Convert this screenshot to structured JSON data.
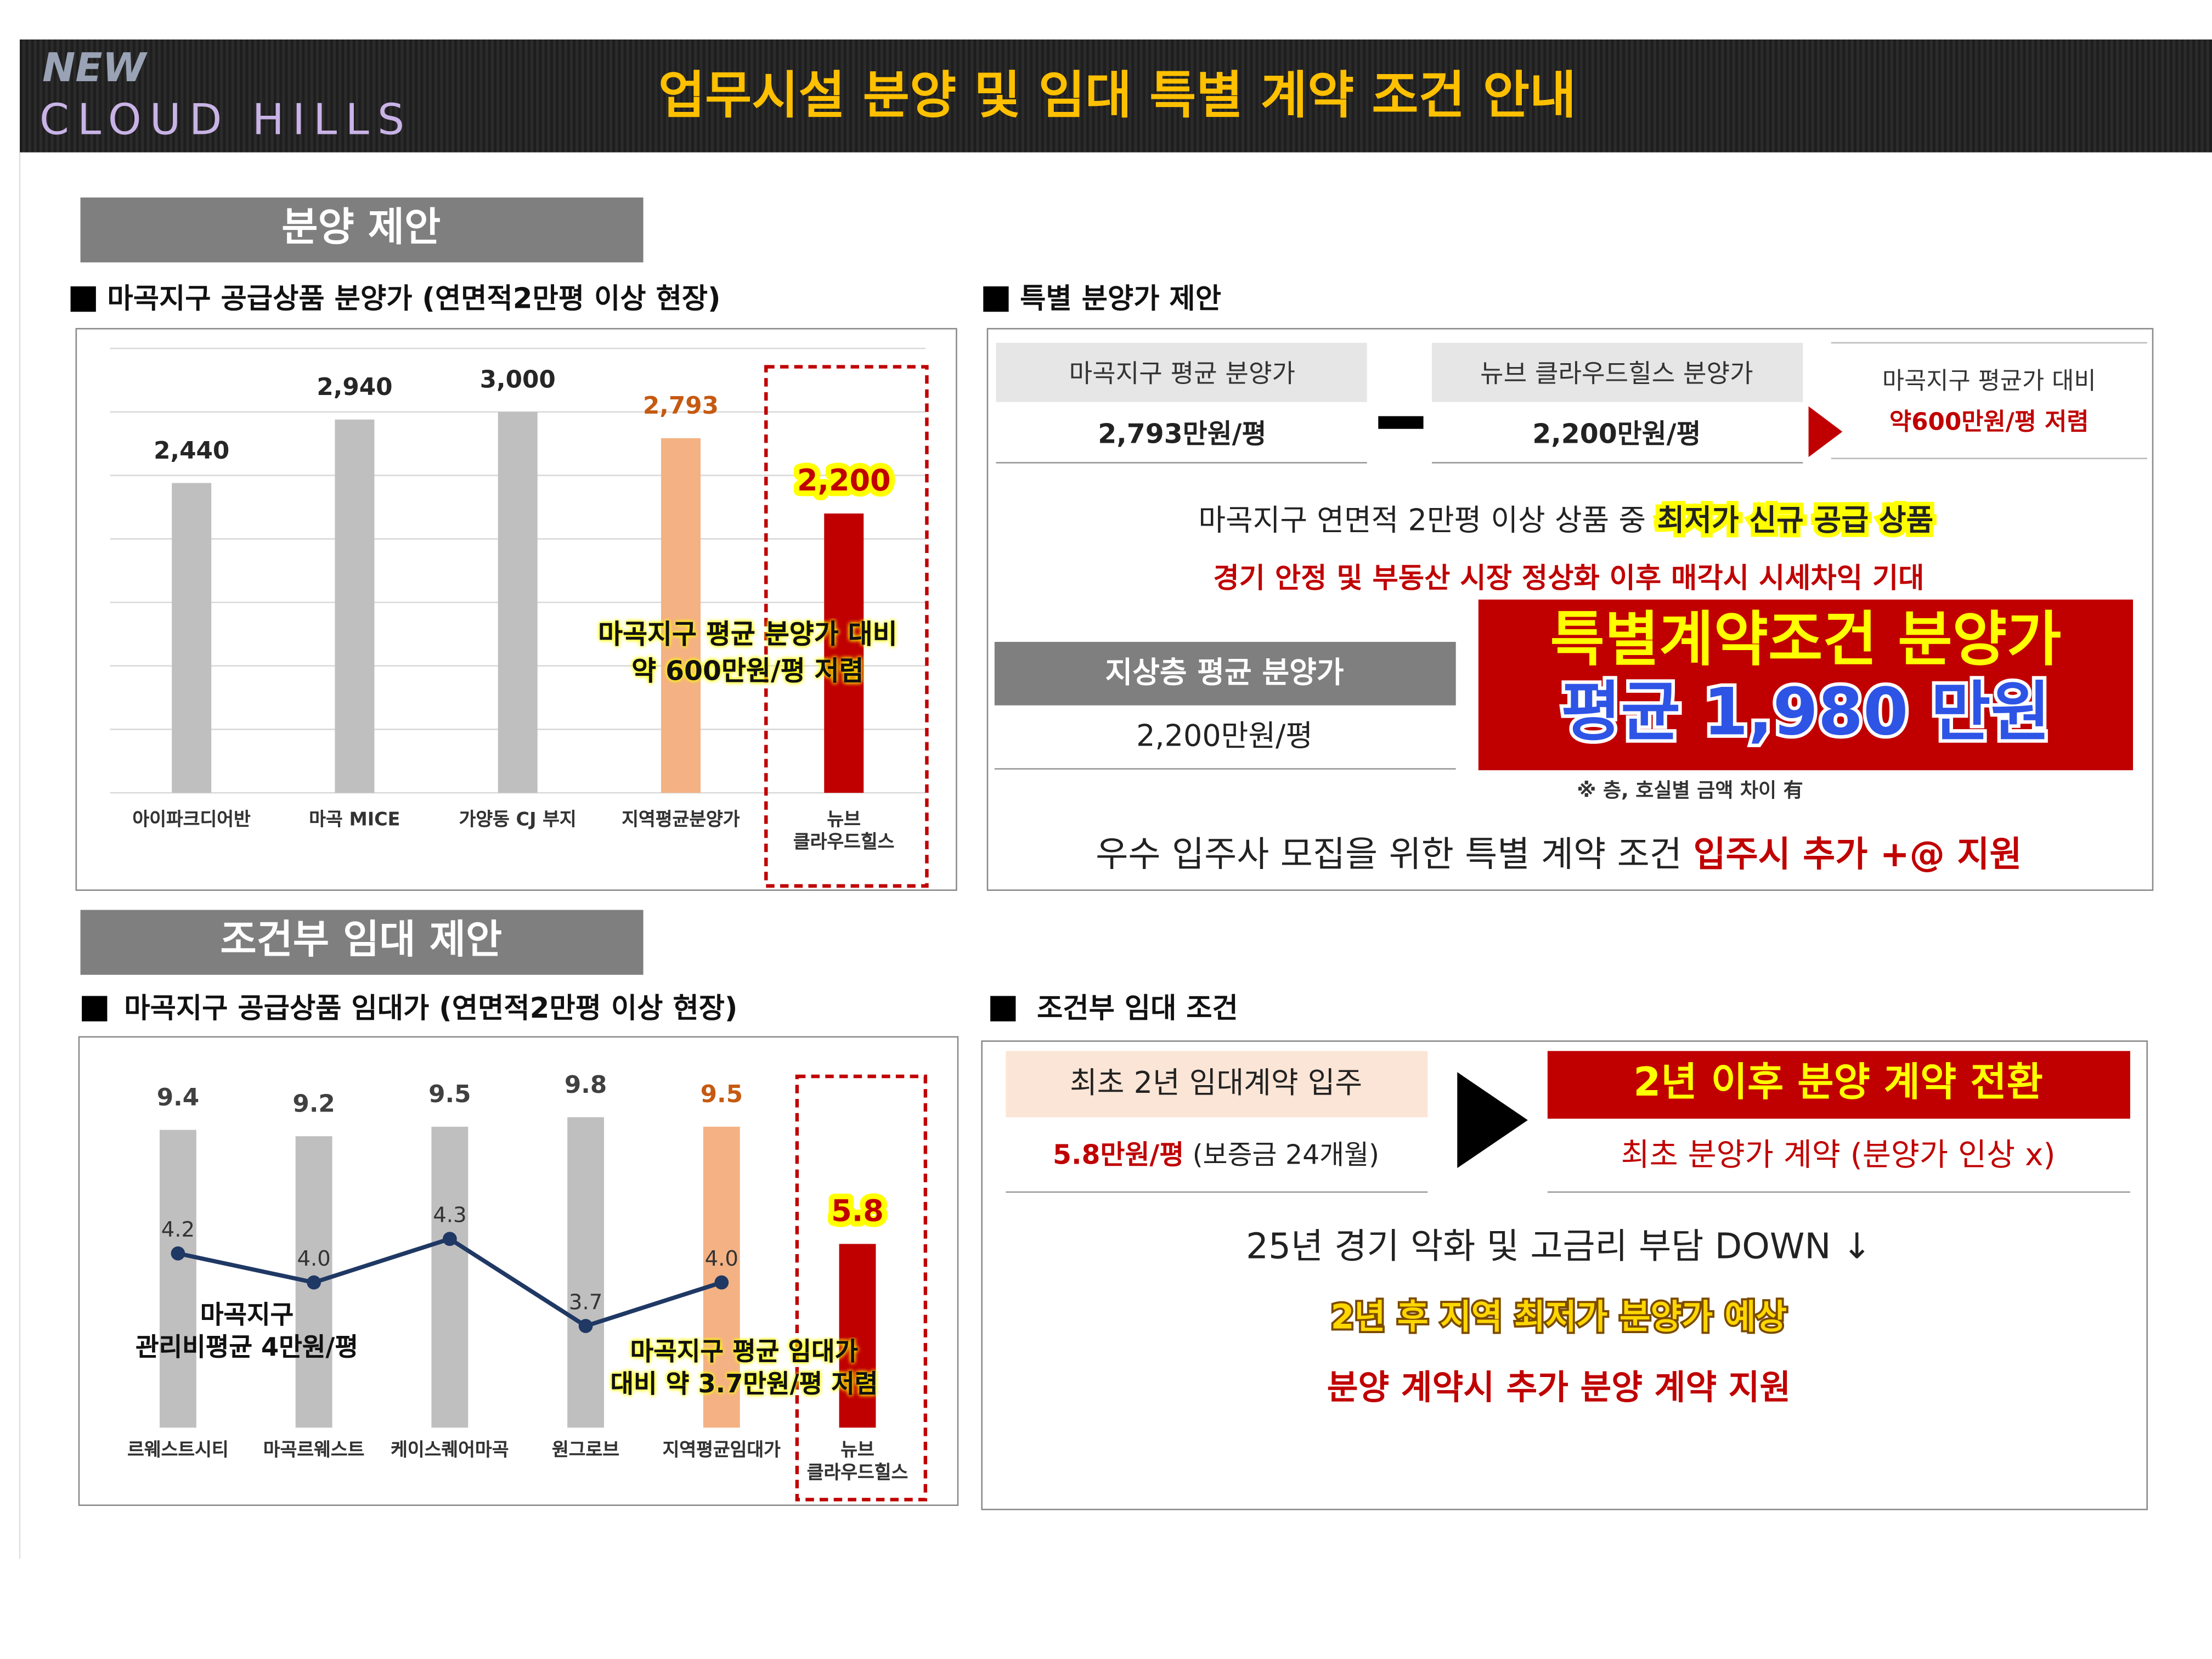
{
  "header": {
    "logo_top": "NEW",
    "logo_bottom": "CLOUD HILLS",
    "title": "업무시설 분양 및 임대 특별 계약 조건 안내"
  },
  "sale": {
    "heading": "분양 제안",
    "chart_caption": "마곡지구 공급상품 분양가 (연면적2만평 이상 현장)",
    "special_caption": "특별 분양가 제안",
    "avg_label": "마곡지구 평균 분양가",
    "avg_value": "2,793만원/평",
    "new_label": "뉴브 클라우드힐스 분양가",
    "new_value": "2,200만원/평",
    "diff_label": "마곡지구 평균가 대비",
    "diff_value": "약600만원/평 저렴",
    "line1": "마곡지구 연면적 2만평 이상 상품 중",
    "line1_highlight": "최저가 신규 공급 상품",
    "line2": "경기 안정 및 부동산 시장 정상화 이후 매각시 시세차익 기대",
    "ground_label": "지상층 평균 분양가",
    "ground_value": "2,200만원/평",
    "special_title": "특별계약조건 분양가",
    "special_price": "평균 1,980 만원",
    "note": "※ 층, 호실별 금액 차이 有",
    "line3": "우수 입주사 모집을 위한 특별 계약 조건",
    "line3_highlight": "입주시 추가 +@ 지원"
  },
  "lease": {
    "heading": "조건부 임대 제안",
    "chart_caption": "마곡지구 공급상품 임대가 (연면적2만평 이상 현장)",
    "cond_caption": "조건부 임대 조건",
    "first_label": "최초 2년 임대계약 입주",
    "first_price": "5.8만원/평",
    "first_note": "(보증금 24개월)",
    "after_label": "2년 이후 분양 계약 전환",
    "after_note": "최초 분양가 계약 (분양가 인상 x)",
    "line1": "25년 경기 악화 및 고금리 부담 DOWN ↓",
    "line2": "2년 후 지역 최저가 분양가 예상",
    "line3": "분양 계약시 추가 분양 계약 지원"
  },
  "chart_data": [
    {
      "type": "bar",
      "categories": [
        "아이파크디어반",
        "마곡 MICE",
        "가양동 CJ 부지",
        "지역평균분양가",
        "뉴브\n클라우드힐스"
      ],
      "values": [
        2440,
        2940,
        3000,
        2793,
        2200
      ],
      "value_labels": [
        "2,440",
        "2,940",
        "3,000",
        "2,793",
        "2,200"
      ],
      "colors": [
        "#bfbfbf",
        "#bfbfbf",
        "#bfbfbf",
        "#f4b183",
        "#c00000"
      ],
      "label_colors": [
        "#262626",
        "#262626",
        "#262626",
        "#c55a11",
        "#c00000"
      ],
      "ylim": [
        0,
        3500
      ],
      "yticks": [
        0,
        500,
        1000,
        1500,
        2000,
        2500,
        3000,
        3500
      ],
      "grid": true,
      "highlight_color": "#ffff00",
      "annotation": "마곡지구 평균 분양가 대비\n약 600만원/평 저렴"
    },
    {
      "type": "bar",
      "categories": [
        "르웨스트시티",
        "마곡르웨스트",
        "케이스퀘어마곡",
        "원그로브",
        "지역평균임대가",
        "뉴브\n클라우드힐스"
      ],
      "series": [
        {
          "type": "bar",
          "values": [
            9.4,
            9.2,
            9.5,
            9.8,
            9.5,
            5.8
          ],
          "colors": [
            "#bfbfbf",
            "#bfbfbf",
            "#bfbfbf",
            "#bfbfbf",
            "#f4b183",
            "#c00000"
          ],
          "label_colors": [
            "#404040",
            "#404040",
            "#404040",
            "#404040",
            "#c55a11",
            "#c00000"
          ]
        },
        {
          "type": "line",
          "axis": "y2",
          "color": "#1f3864",
          "values": [
            4.2,
            4.0,
            4.3,
            3.7,
            4.0,
            null
          ],
          "value_labels": [
            "4.2",
            "4.0",
            "4.3",
            "3.7",
            "4.0",
            null
          ]
        }
      ],
      "ylim": [
        0,
        11
      ],
      "y2lim": [
        3,
        5.4
      ],
      "highlight_color": "#ffff00",
      "annotations": [
        "마곡지구\n관리비평균 4만원/평",
        "마곡지구 평균 임대가\n대비 약 3.7만원/평 저렴"
      ]
    }
  ]
}
